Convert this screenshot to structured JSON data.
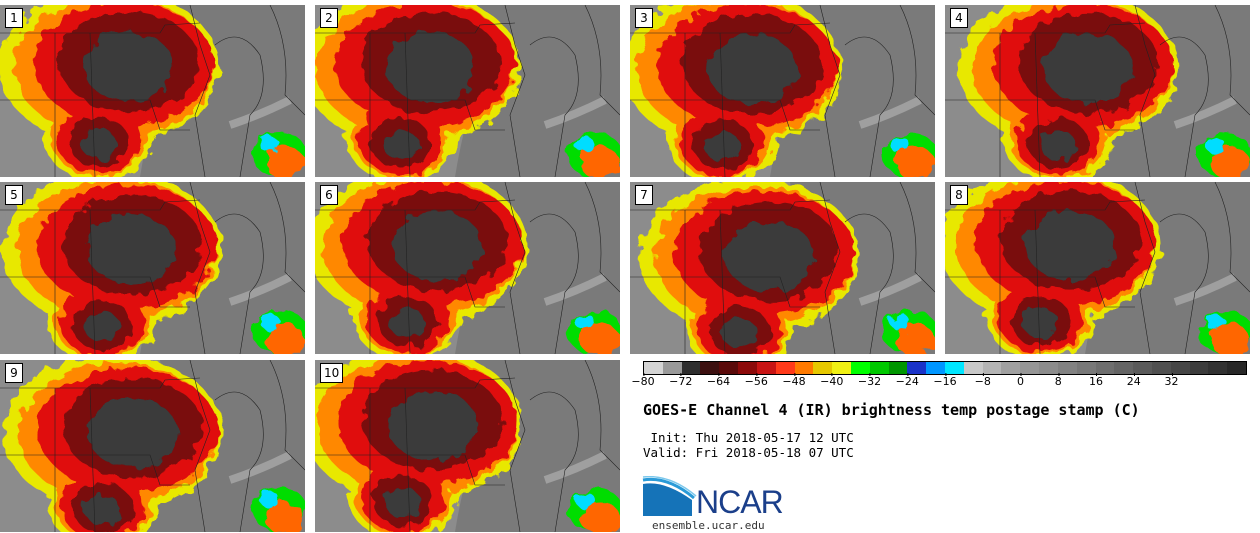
{
  "panels": [
    {
      "label": "1"
    },
    {
      "label": "2"
    },
    {
      "label": "3"
    },
    {
      "label": "4"
    },
    {
      "label": "5"
    },
    {
      "label": "6"
    },
    {
      "label": "7"
    },
    {
      "label": "8"
    },
    {
      "label": "9"
    },
    {
      "label": "10"
    }
  ],
  "colorbar": {
    "colors": [
      "#d4d4d4",
      "#9a9a9a",
      "#2e2e2e",
      "#3c1010",
      "#5a0a0a",
      "#8c0a0a",
      "#c81414",
      "#ff3a1a",
      "#ff7a00",
      "#e6c800",
      "#f0f014",
      "#00ff00",
      "#00c800",
      "#009600",
      "#1a32c8",
      "#0096ff",
      "#00e6ff",
      "#c8c8c8",
      "#b4b4b4",
      "#a0a0a0",
      "#969696",
      "#8c8c8c",
      "#828282",
      "#787878",
      "#6e6e6e",
      "#646464",
      "#5a5a5a",
      "#505050",
      "#464646",
      "#3c3c3c",
      "#323232",
      "#282828"
    ],
    "ticks": [
      "−80",
      "−72",
      "−64",
      "−56",
      "−48",
      "−40",
      "−32",
      "−24",
      "−16",
      "−8",
      "0",
      "8",
      "16",
      "24",
      "32"
    ]
  },
  "title": "GOES-E Channel 4 (IR) brightness temp postage stamp (C)",
  "init": " Init: Thu 2018-05-17 12 UTC",
  "valid": "Valid: Fri 2018-05-18 07 UTC",
  "logo": {
    "text": "NCAR",
    "color": "#1b3f8a"
  },
  "website": "ensemble.ucar.edu"
}
